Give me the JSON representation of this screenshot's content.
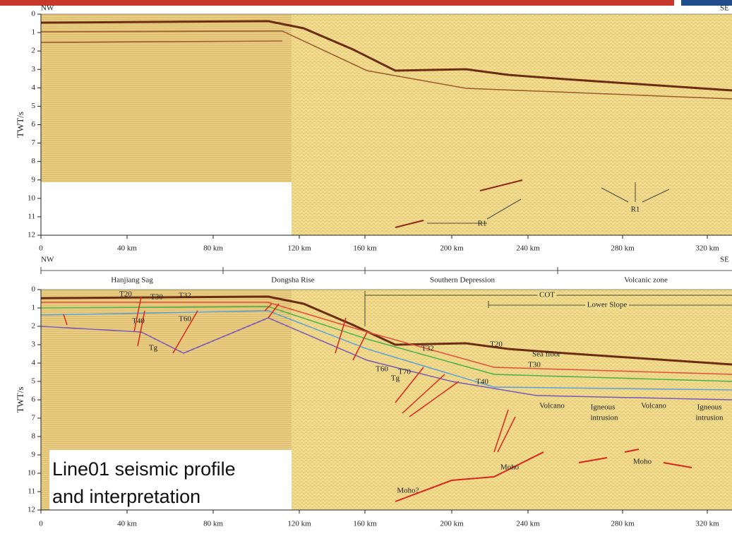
{
  "header": {
    "left_label": "NW",
    "right_label": "SE"
  },
  "panels": [
    {
      "y_axis_label": "TWT/s",
      "y_ticks": [
        0,
        1,
        2,
        3,
        4,
        5,
        6,
        7,
        8,
        9,
        10,
        11,
        12
      ],
      "x_ticks": [
        "0",
        "40 km",
        "80 km",
        "120 km",
        "160 km",
        "200 km",
        "240 km",
        "280 km",
        "320 km"
      ],
      "annotations": [
        "R1",
        "R1"
      ]
    },
    {
      "y_axis_label": "TWT/s",
      "y_ticks": [
        0,
        1,
        2,
        3,
        4,
        5,
        6,
        7,
        8,
        9,
        10,
        11,
        12
      ],
      "x_ticks": [
        "0",
        "40 km",
        "80 km",
        "120 km",
        "160 km",
        "200 km",
        "240 km",
        "280 km",
        "320 km"
      ],
      "regions": [
        "Hanjiang Sag",
        "Dongsha Rise",
        "Southern Depression",
        "Volcanic zone"
      ],
      "boundaries": [
        "COT",
        "Lower Slope"
      ],
      "annotations": [
        "T20",
        "T30",
        "T32",
        "T40",
        "T60",
        "Tg",
        "T32",
        "T60",
        "T70",
        "Tg",
        "T20",
        "T30",
        "T40",
        "Sea floor",
        "Volcano",
        "Igneous",
        "intrusion",
        "Volcano",
        "Igneous",
        "intrusion",
        "Moho",
        "Moho",
        "Moho?"
      ]
    }
  ],
  "caption": [
    "Line01 seismic profile",
    "and interpretation"
  ]
}
